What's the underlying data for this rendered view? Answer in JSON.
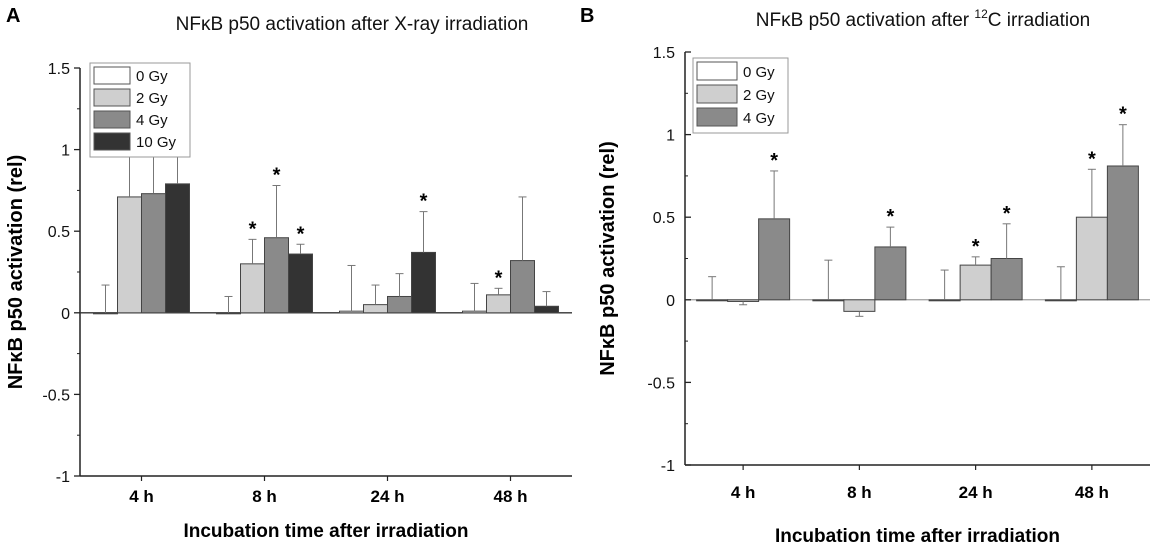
{
  "chart_data": [
    {
      "type": "bar",
      "panel_letter": "A",
      "title": "NFκB p50 activation after X-ray irradiation",
      "xlabel": "Incubation time after irradiation",
      "ylabel": "NFκB p50 activation (rel)",
      "ylim": [
        -1,
        1.5
      ],
      "yticks": [
        -1,
        -0.5,
        0,
        0.5,
        1,
        1.5
      ],
      "ytick_labels": [
        "-1",
        "-0.5",
        "0",
        "0.5",
        "1",
        "1.5"
      ],
      "categories": [
        "4 h",
        "8 h",
        "24 h",
        "48 h"
      ],
      "legend_position": "top-left",
      "series": [
        {
          "name": "0 Gy",
          "color": "#ffffff",
          "values": [
            0,
            0,
            0.01,
            0.01
          ],
          "errors": [
            0.17,
            0.1,
            0.28,
            0.17
          ],
          "significant": [
            false,
            false,
            false,
            false
          ]
        },
        {
          "name": "2 Gy",
          "color": "#cfcfcf",
          "values": [
            0.71,
            0.3,
            0.05,
            0.11
          ],
          "errors": [
            0.26,
            0.15,
            0.12,
            0.04
          ],
          "significant": [
            true,
            true,
            false,
            true
          ]
        },
        {
          "name": "4 Gy",
          "color": "#8a8a8a",
          "values": [
            0.73,
            0.46,
            0.1,
            0.32
          ],
          "errors": [
            0.33,
            0.32,
            0.14,
            0.39
          ],
          "significant": [
            true,
            true,
            false,
            false
          ]
        },
        {
          "name": "10 Gy",
          "color": "#333333",
          "values": [
            0.79,
            0.36,
            0.37,
            0.04
          ],
          "errors": [
            0.28,
            0.06,
            0.25,
            0.09
          ],
          "significant": [
            true,
            true,
            true,
            false
          ]
        }
      ],
      "significance_marker": "*"
    },
    {
      "type": "bar",
      "panel_letter": "B",
      "title_prefix": "NFκB p50 activation after ",
      "title_superscript": "12",
      "title_suffix": "C irradiation",
      "xlabel": "Incubation time after irradiation",
      "ylabel": "NFκB p50 activation (rel)",
      "ylim": [
        -1,
        1.5
      ],
      "yticks": [
        -1,
        -0.5,
        0,
        0.5,
        1,
        1.5
      ],
      "ytick_labels": [
        "-1",
        "-0.5",
        "0",
        "0.5",
        "1",
        "1.5"
      ],
      "categories": [
        "4 h",
        "8 h",
        "24 h",
        "48 h"
      ],
      "legend_position": "top-left",
      "series": [
        {
          "name": "0 Gy",
          "color": "#ffffff",
          "values": [
            0,
            0,
            0,
            0
          ],
          "errors": [
            0.14,
            0.24,
            0.18,
            0.2
          ],
          "significant": [
            false,
            false,
            false,
            false
          ]
        },
        {
          "name": "2 Gy",
          "color": "#cfcfcf",
          "values": [
            -0.01,
            -0.07,
            0.21,
            0.5
          ],
          "errors": [
            0.02,
            0.03,
            0.05,
            0.29
          ],
          "significant": [
            false,
            false,
            true,
            true
          ]
        },
        {
          "name": "4 Gy",
          "color": "#8a8a8a",
          "values": [
            0.49,
            0.32,
            0.25,
            0.81
          ],
          "errors": [
            0.29,
            0.12,
            0.21,
            0.25
          ],
          "significant": [
            true,
            true,
            true,
            true
          ]
        }
      ],
      "significance_marker": "*"
    }
  ]
}
